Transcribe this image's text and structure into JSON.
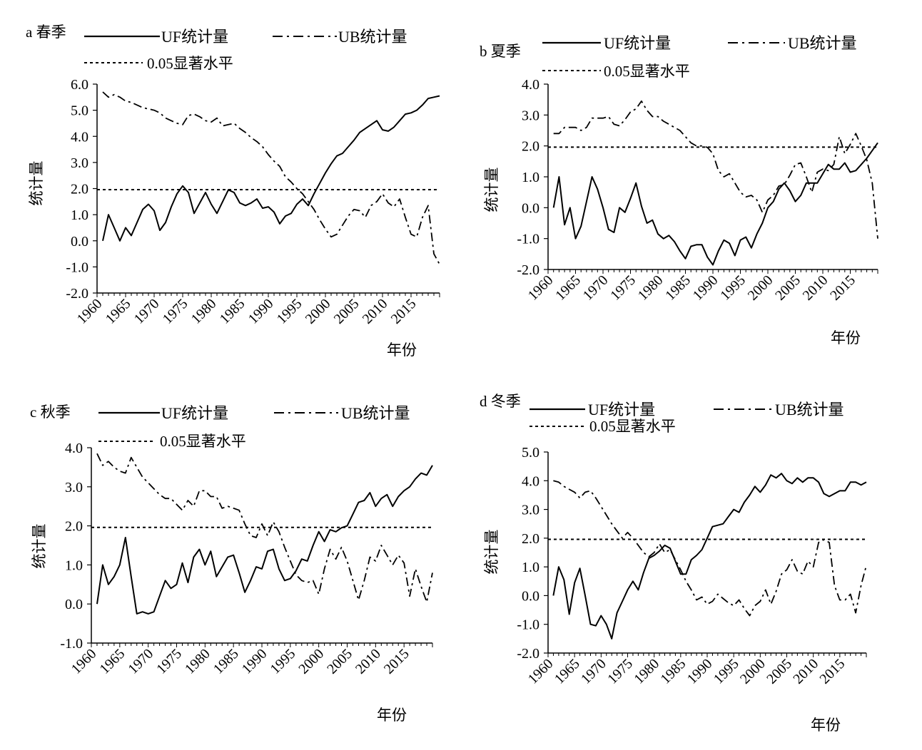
{
  "legend": {
    "uf": "UF统计量",
    "ub": "UB统计量",
    "sig": "0.05显著水平"
  },
  "colors": {
    "line": "#000000"
  },
  "chart_data": [
    {
      "type": "line",
      "title": "a 春季",
      "xlabel": "年份",
      "ylabel": "统计量",
      "x_tick_labels": [
        "1960",
        "1965",
        "1970",
        "1975",
        "1980",
        "1985",
        "1990",
        "1995",
        "2000",
        "2005",
        "2010",
        "2015"
      ],
      "y_tick_labels": [
        "6.0",
        "5.0",
        "4.0",
        "3.0",
        "2.0",
        "1.0",
        "0.0",
        "-1.0",
        "-2.0"
      ],
      "ylim": [
        -2.0,
        6.0
      ],
      "yticks": [
        6,
        5,
        4,
        3,
        2,
        1,
        0,
        -1,
        -2
      ],
      "xlim": [
        1960,
        2020
      ],
      "significance_level": 1.96,
      "x": [
        1961,
        1962,
        1963,
        1964,
        1965,
        1966,
        1967,
        1968,
        1969,
        1970,
        1971,
        1972,
        1973,
        1974,
        1975,
        1976,
        1977,
        1978,
        1979,
        1980,
        1981,
        1982,
        1983,
        1984,
        1985,
        1986,
        1987,
        1988,
        1989,
        1990,
        1991,
        1992,
        1993,
        1994,
        1995,
        1996,
        1997,
        1998,
        1999,
        2000,
        2001,
        2002,
        2003,
        2004,
        2005,
        2006,
        2007,
        2008,
        2009,
        2010,
        2011,
        2012,
        2013,
        2014,
        2015,
        2016,
        2017,
        2018,
        2019,
        2020
      ],
      "series": [
        {
          "name": "UF统计量",
          "values": [
            0.0,
            1.0,
            0.5,
            0.0,
            0.5,
            0.2,
            0.7,
            1.2,
            1.4,
            1.15,
            0.4,
            0.7,
            1.3,
            1.8,
            2.1,
            1.85,
            1.05,
            1.45,
            1.85,
            1.4,
            1.05,
            1.5,
            1.95,
            1.85,
            1.45,
            1.35,
            1.45,
            1.6,
            1.25,
            1.3,
            1.1,
            0.65,
            0.95,
            1.05,
            1.4,
            1.6,
            1.35,
            1.8,
            2.2,
            2.6,
            2.95,
            3.25,
            3.35,
            3.6,
            3.85,
            4.15,
            4.3,
            4.45,
            4.6,
            4.25,
            4.2,
            4.35,
            4.6,
            4.85,
            4.9,
            5.0,
            5.2,
            5.45,
            5.5,
            5.55
          ]
        },
        {
          "name": "UB统计量",
          "values": [
            5.7,
            5.5,
            5.6,
            5.5,
            5.35,
            5.3,
            5.2,
            5.1,
            5.05,
            5.0,
            4.9,
            4.7,
            4.6,
            4.5,
            4.45,
            4.8,
            4.85,
            4.75,
            4.6,
            4.55,
            4.7,
            4.4,
            4.45,
            4.5,
            4.3,
            4.15,
            3.95,
            3.8,
            3.6,
            3.3,
            3.05,
            2.85,
            2.45,
            2.25,
            2.0,
            1.8,
            1.5,
            1.2,
            0.8,
            0.45,
            0.15,
            0.25,
            0.6,
            0.95,
            1.2,
            1.15,
            0.9,
            1.35,
            1.5,
            1.8,
            1.45,
            1.3,
            1.6,
            0.9,
            0.25,
            0.15,
            0.9,
            1.35,
            -0.5,
            -0.9
          ]
        }
      ]
    },
    {
      "type": "line",
      "title": "b 夏季",
      "xlabel": "年份",
      "ylabel": "统计量",
      "x_tick_labels": [
        "1960",
        "1965",
        "1970",
        "1975",
        "1980",
        "1985",
        "1990",
        "1995",
        "2000",
        "2005",
        "2010",
        "2015"
      ],
      "y_tick_labels": [
        "4.0",
        "3.0",
        "2.0",
        "1.0",
        "0.0",
        "-1.0",
        "-2.0"
      ],
      "ylim": [
        -2.0,
        4.0
      ],
      "yticks": [
        4,
        3,
        2,
        1,
        0,
        -1,
        -2
      ],
      "xlim": [
        1960,
        2020
      ],
      "significance_level": 1.96,
      "x": [
        1961,
        1962,
        1963,
        1964,
        1965,
        1966,
        1967,
        1968,
        1969,
        1970,
        1971,
        1972,
        1973,
        1974,
        1975,
        1976,
        1977,
        1978,
        1979,
        1980,
        1981,
        1982,
        1983,
        1984,
        1985,
        1986,
        1987,
        1988,
        1989,
        1990,
        1991,
        1992,
        1993,
        1994,
        1995,
        1996,
        1997,
        1998,
        1999,
        2000,
        2001,
        2002,
        2003,
        2004,
        2005,
        2006,
        2007,
        2008,
        2009,
        2010,
        2011,
        2012,
        2013,
        2014,
        2015,
        2016,
        2017,
        2018,
        2019,
        2020
      ],
      "series": [
        {
          "name": "UF统计量",
          "values": [
            0.0,
            1.0,
            -0.55,
            0.0,
            -1.0,
            -0.6,
            0.2,
            1.0,
            0.6,
            0.0,
            -0.7,
            -0.8,
            0.0,
            -0.15,
            0.3,
            0.8,
            0.05,
            -0.5,
            -0.4,
            -0.85,
            -1.0,
            -0.9,
            -1.1,
            -1.4,
            -1.65,
            -1.25,
            -1.2,
            -1.2,
            -1.6,
            -1.85,
            -1.4,
            -1.05,
            -1.15,
            -1.55,
            -1.05,
            -0.95,
            -1.3,
            -0.85,
            -0.5,
            0.0,
            0.2,
            0.6,
            0.8,
            0.55,
            0.2,
            0.4,
            0.8,
            0.8,
            0.8,
            1.1,
            1.4,
            1.25,
            1.25,
            1.45,
            1.15,
            1.2,
            1.4,
            1.6,
            1.85,
            2.1
          ]
        },
        {
          "name": "UB统计量",
          "values": [
            2.4,
            2.4,
            2.6,
            2.6,
            2.6,
            2.5,
            2.6,
            2.9,
            2.9,
            2.9,
            2.95,
            2.7,
            2.65,
            2.85,
            3.1,
            3.2,
            3.45,
            3.15,
            2.95,
            2.95,
            2.8,
            2.7,
            2.6,
            2.5,
            2.3,
            2.1,
            2.0,
            2.0,
            1.95,
            1.75,
            1.2,
            1.0,
            1.1,
            0.8,
            0.5,
            0.35,
            0.4,
            0.25,
            -0.15,
            0.25,
            0.4,
            0.7,
            0.75,
            1.05,
            1.4,
            1.45,
            1.0,
            0.5,
            1.15,
            1.25,
            1.2,
            1.4,
            2.3,
            1.75,
            2.05,
            2.4,
            2.0,
            1.55,
            0.8,
            -1.0
          ]
        }
      ]
    },
    {
      "type": "line",
      "title": "c 秋季",
      "xlabel": "年份",
      "ylabel": "统计量",
      "x_tick_labels": [
        "1960",
        "1965",
        "1970",
        "1975",
        "1980",
        "1985",
        "1990",
        "1995",
        "2000",
        "2005",
        "2010",
        "2015"
      ],
      "y_tick_labels": [
        "4.0",
        "3.0",
        "2.0",
        "1.0",
        "0.0",
        "-1.0"
      ],
      "ylim": [
        -1.0,
        4.0
      ],
      "yticks": [
        4,
        3,
        2,
        1,
        0,
        -1
      ],
      "xlim": [
        1960,
        2020
      ],
      "significance_level": 1.96,
      "x": [
        1961,
        1962,
        1963,
        1964,
        1965,
        1966,
        1967,
        1968,
        1969,
        1970,
        1971,
        1972,
        1973,
        1974,
        1975,
        1976,
        1977,
        1978,
        1979,
        1980,
        1981,
        1982,
        1983,
        1984,
        1985,
        1986,
        1987,
        1988,
        1989,
        1990,
        1991,
        1992,
        1993,
        1994,
        1995,
        1996,
        1997,
        1998,
        1999,
        2000,
        2001,
        2002,
        2003,
        2004,
        2005,
        2006,
        2007,
        2008,
        2009,
        2010,
        2011,
        2012,
        2013,
        2014,
        2015,
        2016,
        2017,
        2018,
        2019,
        2020
      ],
      "series": [
        {
          "name": "UF统计量",
          "values": [
            0.0,
            1.0,
            0.5,
            0.7,
            1.0,
            1.7,
            0.7,
            -0.25,
            -0.2,
            -0.25,
            -0.2,
            0.2,
            0.6,
            0.4,
            0.5,
            1.05,
            0.55,
            1.2,
            1.4,
            1.0,
            1.35,
            0.7,
            0.95,
            1.2,
            1.25,
            0.8,
            0.3,
            0.6,
            0.95,
            0.9,
            1.35,
            1.4,
            0.9,
            0.6,
            0.65,
            0.85,
            1.15,
            1.1,
            1.5,
            1.85,
            1.6,
            1.9,
            1.85,
            1.95,
            2.0,
            2.3,
            2.6,
            2.65,
            2.85,
            2.5,
            2.7,
            2.8,
            2.5,
            2.75,
            2.9,
            3.0,
            3.2,
            3.35,
            3.3,
            3.55
          ]
        },
        {
          "name": "UB统计量",
          "values": [
            3.85,
            3.55,
            3.65,
            3.5,
            3.4,
            3.35,
            3.75,
            3.5,
            3.25,
            3.1,
            2.95,
            2.8,
            2.7,
            2.7,
            2.55,
            2.4,
            2.65,
            2.5,
            2.9,
            2.9,
            2.75,
            2.75,
            2.45,
            2.5,
            2.45,
            2.4,
            2.05,
            1.75,
            1.7,
            2.05,
            1.75,
            2.1,
            1.85,
            1.45,
            1.1,
            0.75,
            0.6,
            0.55,
            0.6,
            0.25,
            0.9,
            1.4,
            1.15,
            1.45,
            1.1,
            0.6,
            0.1,
            0.6,
            1.2,
            1.1,
            1.5,
            1.25,
            1.0,
            1.25,
            1.05,
            0.2,
            0.9,
            0.45,
            0.05,
            0.8
          ]
        }
      ]
    },
    {
      "type": "line",
      "title": "d 冬季",
      "xlabel": "年份",
      "ylabel": "统计量",
      "x_tick_labels": [
        "1960",
        "1965",
        "1970",
        "1975",
        "1980",
        "1985",
        "1990",
        "1995",
        "2000",
        "2005",
        "2010",
        "2015"
      ],
      "y_tick_labels": [
        "5.0",
        "4.0",
        "3.0",
        "2.0",
        "1.0",
        "0.0",
        "-1.0",
        "-2.0"
      ],
      "ylim": [
        -2.0,
        5.0
      ],
      "yticks": [
        5,
        4,
        3,
        2,
        1,
        0,
        -1,
        -2
      ],
      "xlim": [
        1960,
        2020
      ],
      "significance_level": 1.96,
      "x": [
        1961,
        1962,
        1963,
        1964,
        1965,
        1966,
        1967,
        1968,
        1969,
        1970,
        1971,
        1972,
        1973,
        1974,
        1975,
        1976,
        1977,
        1978,
        1979,
        1980,
        1981,
        1982,
        1983,
        1984,
        1985,
        1986,
        1987,
        1988,
        1989,
        1990,
        1991,
        1992,
        1993,
        1994,
        1995,
        1996,
        1997,
        1998,
        1999,
        2000,
        2001,
        2002,
        2003,
        2004,
        2005,
        2006,
        2007,
        2008,
        2009,
        2010,
        2011,
        2012,
        2013,
        2014,
        2015,
        2016,
        2017,
        2018,
        2019,
        2020
      ],
      "series": [
        {
          "name": "UF统计量",
          "values": [
            0.0,
            1.0,
            0.55,
            -0.65,
            0.45,
            0.95,
            0.0,
            -1.0,
            -1.05,
            -0.7,
            -1.0,
            -1.5,
            -0.6,
            -0.2,
            0.2,
            0.5,
            0.2,
            0.8,
            1.3,
            1.4,
            1.55,
            1.75,
            1.65,
            1.2,
            0.75,
            0.75,
            1.25,
            1.4,
            1.6,
            2.0,
            2.4,
            2.45,
            2.5,
            2.75,
            3.0,
            2.9,
            3.25,
            3.5,
            3.8,
            3.6,
            3.85,
            4.2,
            4.1,
            4.25,
            4.0,
            3.9,
            4.1,
            3.95,
            4.1,
            4.1,
            3.95,
            3.55,
            3.45,
            3.55,
            3.65,
            3.65,
            3.95,
            3.95,
            3.85,
            3.95
          ]
        },
        {
          "name": "UB统计量",
          "values": [
            4.0,
            3.95,
            3.8,
            3.7,
            3.6,
            3.4,
            3.6,
            3.65,
            3.4,
            3.1,
            2.8,
            2.5,
            2.25,
            2.0,
            2.2,
            2.0,
            1.75,
            1.5,
            1.35,
            1.5,
            1.8,
            1.5,
            1.6,
            1.25,
            0.9,
            0.5,
            0.2,
            -0.15,
            -0.05,
            -0.3,
            -0.2,
            0.05,
            -0.1,
            -0.25,
            -0.35,
            -0.15,
            -0.45,
            -0.7,
            -0.35,
            -0.2,
            0.2,
            -0.3,
            0.15,
            0.75,
            0.9,
            1.25,
            0.85,
            0.75,
            1.2,
            1.0,
            1.85,
            1.95,
            1.85,
            0.35,
            -0.15,
            -0.15,
            0.05,
            -0.6,
            0.35,
            1.05
          ]
        }
      ]
    }
  ]
}
